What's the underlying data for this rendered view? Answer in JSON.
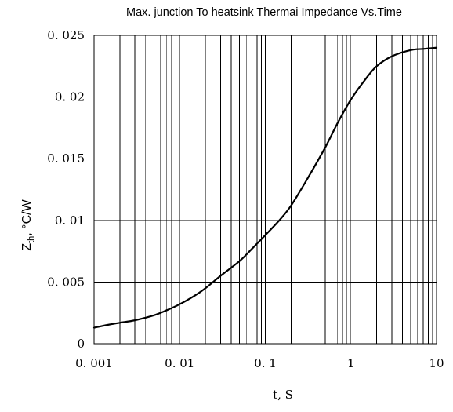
{
  "chart_data": {
    "type": "line",
    "title": "Max. junction To heatsink Thermai Impedance Vs.Time",
    "xlabel": "t, S",
    "ylabel_main": "Z",
    "ylabel_sub": "th",
    "ylabel_rest": ", °C/W",
    "x_scale": "log",
    "xlim": [
      0.001,
      10
    ],
    "ylim": [
      0,
      0.025
    ],
    "grid": true,
    "x_ticks": [
      0.001,
      0.01,
      0.1,
      1,
      10
    ],
    "x_tick_labels": [
      "0. 001",
      "0. 01",
      "0. 1",
      "1",
      "10"
    ],
    "y_ticks": [
      0,
      0.005,
      0.01,
      0.015,
      0.02,
      0.025
    ],
    "y_tick_labels": [
      "0",
      "0. 005",
      "0. 01",
      "0. 015",
      "0. 02",
      "0. 025"
    ],
    "series": [
      {
        "x": [
          0.001,
          0.0015,
          0.002,
          0.003,
          0.005,
          0.007,
          0.01,
          0.015,
          0.02,
          0.03,
          0.05,
          0.07,
          0.1,
          0.15,
          0.2,
          0.3,
          0.5,
          0.7,
          1,
          1.5,
          2,
          3,
          5,
          7,
          10
        ],
        "values": [
          0.0013,
          0.00155,
          0.0017,
          0.0019,
          0.0023,
          0.0027,
          0.0032,
          0.0039,
          0.0045,
          0.0055,
          0.0067,
          0.0077,
          0.0088,
          0.0101,
          0.0112,
          0.0132,
          0.0159,
          0.0179,
          0.0198,
          0.0215,
          0.0225,
          0.0233,
          0.0238,
          0.0239,
          0.024
        ]
      }
    ]
  }
}
